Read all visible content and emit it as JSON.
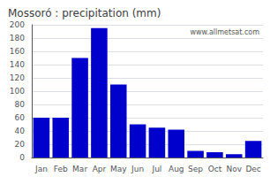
{
  "chart_data": {
    "type": "bar",
    "title": "Mossoró : precipitation (mm)",
    "categories": [
      "Jan",
      "Feb",
      "Mar",
      "Apr",
      "May",
      "Jun",
      "Jul",
      "Aug",
      "Sep",
      "Oct",
      "Nov",
      "Dec"
    ],
    "values": [
      60,
      60,
      150,
      195,
      110,
      50,
      45,
      42,
      10,
      8,
      5,
      25
    ],
    "color": "#0000CC",
    "ylim": [
      0,
      200
    ],
    "yticks": [
      0,
      20,
      40,
      60,
      80,
      100,
      120,
      140,
      160,
      180,
      200
    ],
    "grid": true,
    "annotations": [
      "www.allmetsat.com"
    ]
  }
}
